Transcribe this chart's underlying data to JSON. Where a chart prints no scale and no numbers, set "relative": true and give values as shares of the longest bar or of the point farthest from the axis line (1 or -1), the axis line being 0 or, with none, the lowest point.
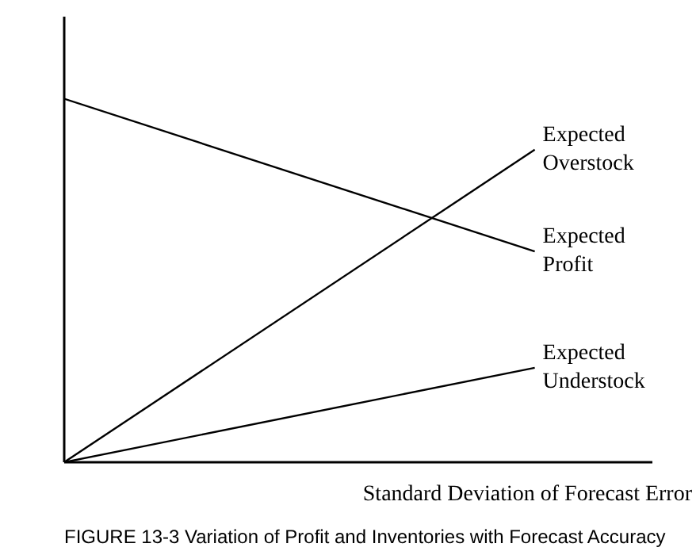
{
  "chart_data": {
    "type": "line",
    "relative": true,
    "title": "FIGURE 13-3 Variation of Profit and Inventories with Forecast Accuracy",
    "xlabel": "Standard Deviation of Forecast Error",
    "categories": [
      null,
      null
    ],
    "series": [
      {
        "name": "Expected Overstock",
        "color": "#000000",
        "values": [
          0,
          0.86
        ]
      },
      {
        "name": "Expected Profit",
        "color": "#000000",
        "values": [
          1,
          0.58
        ]
      },
      {
        "name": "Expected Understock",
        "color": "#000000",
        "values": [
          0,
          0.26
        ]
      }
    ]
  }
}
